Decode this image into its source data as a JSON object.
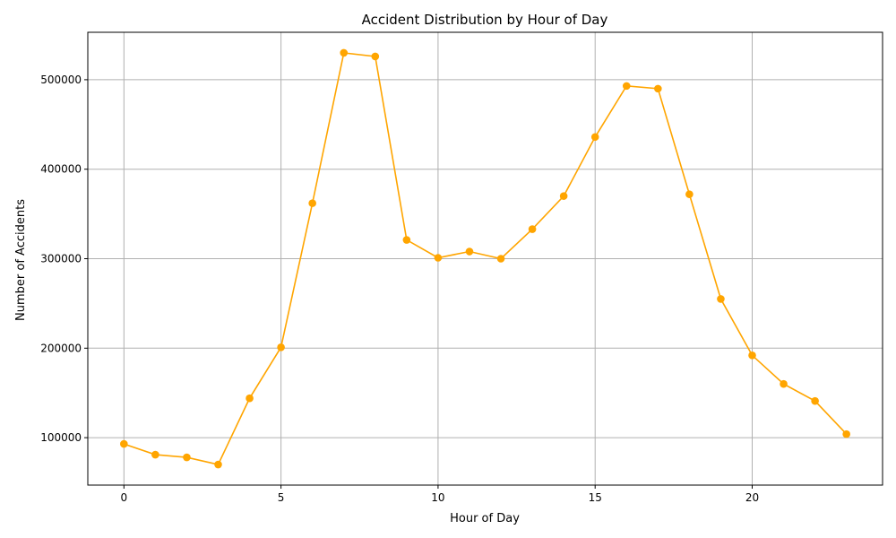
{
  "chart_data": {
    "type": "line",
    "title": "Accident Distribution by Hour of Day",
    "xlabel": "Hour of Day",
    "ylabel": "Number of Accidents",
    "x": [
      0,
      1,
      2,
      3,
      4,
      5,
      6,
      7,
      8,
      9,
      10,
      11,
      12,
      13,
      14,
      15,
      16,
      17,
      18,
      19,
      20,
      21,
      22,
      23
    ],
    "series": [
      {
        "values": [
          93000,
          81000,
          78000,
          70000,
          144000,
          201000,
          362000,
          530000,
          526000,
          321000,
          301000,
          308000,
          300000,
          333000,
          370000,
          436000,
          493000,
          490000,
          372000,
          255000,
          192000,
          160000,
          141000,
          104000
        ],
        "color": "#ffa500",
        "marker": "circle"
      }
    ],
    "xlim": [
      -1.15,
      24.15
    ],
    "ylim": [
      47000,
      553000
    ],
    "xticks": [
      0,
      5,
      10,
      15,
      20
    ],
    "yticks": [
      100000,
      200000,
      300000,
      400000,
      500000
    ],
    "grid": true
  }
}
